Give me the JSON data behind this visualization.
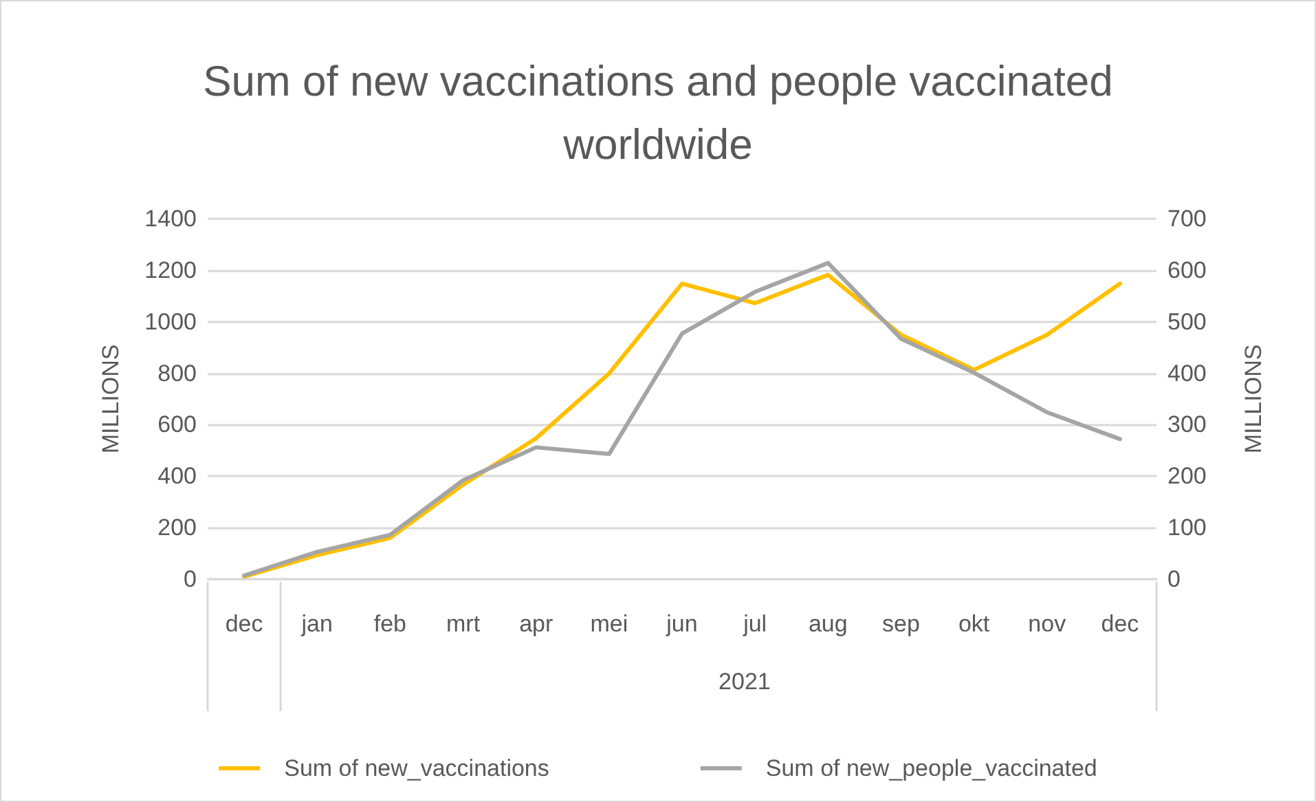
{
  "chart_data": {
    "type": "line",
    "title": "Sum of new vaccinations and people vaccinated\nworldwide",
    "ylabel": "MILLIONS",
    "y2label": "MILLIONS",
    "categories": [
      "dec",
      "jan",
      "feb",
      "mrt",
      "apr",
      "mei",
      "jun",
      "jul",
      "aug",
      "sep",
      "okt",
      "nov",
      "dec"
    ],
    "series": [
      {
        "name": "Sum of new_vaccinations",
        "color": "#ffc000",
        "values": [
          10,
          93,
          160,
          367,
          547,
          799,
          1148,
          1072,
          1182,
          949,
          813,
          949,
          1148
        ]
      },
      {
        "name": "Sum of new_people_vaccinated",
        "color": "#a5a5a5",
        "axis": "y2",
        "values": [
          7,
          53,
          86,
          192,
          256,
          243,
          477,
          558,
          614,
          467,
          401,
          324,
          272
        ]
      }
    ],
    "ylim": [
      0,
      1400
    ],
    "yticks": [
      0,
      200,
      400,
      600,
      800,
      1000,
      1200,
      1400
    ],
    "y2lim": [
      0,
      700
    ],
    "y2ticks": [
      0,
      100,
      200,
      300,
      400,
      500,
      600,
      700
    ],
    "annotations": [
      "2021"
    ],
    "grid": "y",
    "legend": "bottom",
    "marker": "none",
    "line_style": "solid"
  }
}
